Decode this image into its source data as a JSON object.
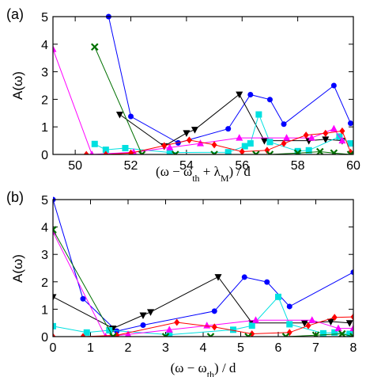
{
  "chart_data": [
    {
      "type": "line",
      "panel_label": "(a)",
      "ylabel": "A(ω)",
      "xlabel_parts": [
        "(ω − ω",
        "th",
        " + λ",
        "M",
        ") / d"
      ],
      "xlim": [
        49.2,
        60.0
      ],
      "ylim": [
        0,
        5
      ],
      "xticks": [
        "50",
        "52",
        "54",
        "56",
        "58",
        "60"
      ],
      "xtick_values": [
        50,
        52,
        54,
        56,
        58,
        60
      ],
      "yticks": [
        "0",
        "1",
        "2",
        "3",
        "4",
        "5"
      ],
      "ytick_values": [
        0,
        1,
        2,
        3,
        4,
        5
      ],
      "series": [
        {
          "color": "#0000ff",
          "marker": "circle",
          "points": [
            [
              51.2,
              5.0
            ],
            [
              52.0,
              1.38
            ],
            [
              53.7,
              0.42
            ],
            [
              55.5,
              0.93
            ],
            [
              56.3,
              2.17
            ],
            [
              57.0,
              1.99
            ],
            [
              57.5,
              1.1
            ],
            [
              59.3,
              2.5
            ],
            [
              59.9,
              1.13
            ]
          ]
        },
        {
          "color": "#000000",
          "marker": "tri-down",
          "points": [
            [
              51.6,
              1.45
            ],
            [
              53.2,
              0.3
            ],
            [
              54.0,
              0.78
            ],
            [
              54.3,
              0.9
            ],
            [
              55.9,
              2.18
            ],
            [
              56.8,
              0.5
            ],
            [
              58.4,
              0.5
            ],
            [
              59.0,
              0.55
            ],
            [
              59.6,
              0.5
            ]
          ]
        },
        {
          "color": "#00e0e0",
          "marker": "square",
          "points": [
            [
              50.7,
              0.38
            ],
            [
              51.1,
              0.17
            ],
            [
              51.8,
              0.23
            ],
            [
              53.4,
              0.07
            ],
            [
              55.5,
              0.08
            ],
            [
              56.1,
              0.3
            ],
            [
              56.3,
              0.4
            ],
            [
              56.6,
              1.45
            ],
            [
              57.0,
              0.45
            ],
            [
              58.0,
              0.12
            ],
            [
              58.4,
              0.15
            ],
            [
              59.5,
              0.65
            ],
            [
              59.9,
              0.4
            ]
          ]
        },
        {
          "color": "#ff00ff",
          "marker": "tri-up",
          "points": [
            [
              49.2,
              3.82
            ],
            [
              50.6,
              0.0
            ],
            [
              52.1,
              0.08
            ],
            [
              53.4,
              0.25
            ],
            [
              54.5,
              0.4
            ],
            [
              55.9,
              0.6
            ],
            [
              57.6,
              0.6
            ],
            [
              58.5,
              0.6
            ],
            [
              59.3,
              0.93
            ],
            [
              59.6,
              0.5
            ]
          ]
        },
        {
          "color": "#ff0000",
          "marker": "diamond",
          "points": [
            [
              50.4,
              0.0
            ],
            [
              51.1,
              0.0
            ],
            [
              52.0,
              0.05
            ],
            [
              53.2,
              0.32
            ],
            [
              54.1,
              0.52
            ],
            [
              55.0,
              0.35
            ],
            [
              56.0,
              0.1
            ],
            [
              56.9,
              0.15
            ],
            [
              57.5,
              0.4
            ],
            [
              58.3,
              0.7
            ],
            [
              59.0,
              0.77
            ],
            [
              59.6,
              0.85
            ],
            [
              59.9,
              0.08
            ]
          ]
        },
        {
          "color": "#007000",
          "marker": "cross",
          "points": [
            [
              50.7,
              3.9
            ],
            [
              52.4,
              0.0
            ],
            [
              53.6,
              0.0
            ],
            [
              55.0,
              0.0
            ],
            [
              56.5,
              0.0
            ],
            [
              57.0,
              0.0
            ],
            [
              58.0,
              0.05
            ],
            [
              58.8,
              0.1
            ],
            [
              59.3,
              0.05
            ],
            [
              59.9,
              0.0
            ]
          ]
        }
      ]
    },
    {
      "type": "line",
      "panel_label": "(b)",
      "ylabel": "A(ω)",
      "xlabel_parts": [
        "(ω − ω",
        "th",
        ") / d"
      ],
      "xlim": [
        0,
        8
      ],
      "ylim": [
        0,
        5
      ],
      "xticks": [
        "0",
        "1",
        "2",
        "3",
        "4",
        "5",
        "6",
        "7",
        "8"
      ],
      "xtick_values": [
        0,
        1,
        2,
        3,
        4,
        5,
        6,
        7,
        8
      ],
      "yticks": [
        "0",
        "1",
        "2",
        "3",
        "4",
        "5"
      ],
      "ytick_values": [
        0,
        1,
        2,
        3,
        4,
        5
      ],
      "series": [
        {
          "color": "#0000ff",
          "marker": "circle",
          "points": [
            [
              0.0,
              5.0
            ],
            [
              0.8,
              1.38
            ],
            [
              1.7,
              0.2
            ],
            [
              2.4,
              0.42
            ],
            [
              4.3,
              0.93
            ],
            [
              5.1,
              2.17
            ],
            [
              5.7,
              1.99
            ],
            [
              6.3,
              1.1
            ],
            [
              8.0,
              2.35
            ]
          ]
        },
        {
          "color": "#000000",
          "marker": "tri-down",
          "points": [
            [
              0.0,
              1.45
            ],
            [
              1.6,
              0.3
            ],
            [
              2.4,
              0.78
            ],
            [
              2.6,
              0.9
            ],
            [
              4.4,
              2.18
            ],
            [
              5.3,
              0.5
            ],
            [
              6.7,
              0.5
            ],
            [
              7.4,
              0.55
            ],
            [
              7.9,
              0.5
            ]
          ]
        },
        {
          "color": "#00e0e0",
          "marker": "square",
          "points": [
            [
              0.0,
              0.38
            ],
            [
              0.9,
              0.15
            ],
            [
              1.5,
              0.23
            ],
            [
              3.1,
              0.07
            ],
            [
              4.8,
              0.25
            ],
            [
              5.3,
              0.4
            ],
            [
              6.0,
              1.45
            ],
            [
              6.3,
              0.45
            ],
            [
              7.2,
              0.12
            ],
            [
              7.5,
              0.15
            ],
            [
              7.9,
              0.1
            ]
          ]
        },
        {
          "color": "#ff00ff",
          "marker": "tri-up",
          "points": [
            [
              0.0,
              3.82
            ],
            [
              1.4,
              0.0
            ],
            [
              2.0,
              0.08
            ],
            [
              3.1,
              0.25
            ],
            [
              4.1,
              0.4
            ],
            [
              5.4,
              0.6
            ],
            [
              6.9,
              0.6
            ],
            [
              7.6,
              0.3
            ],
            [
              8.0,
              0.3
            ]
          ]
        },
        {
          "color": "#ff0000",
          "marker": "diamond",
          "points": [
            [
              0.0,
              0.0
            ],
            [
              0.8,
              0.0
            ],
            [
              1.7,
              0.05
            ],
            [
              3.3,
              0.52
            ],
            [
              4.3,
              0.35
            ],
            [
              5.3,
              0.1
            ],
            [
              6.3,
              0.15
            ],
            [
              6.8,
              0.4
            ],
            [
              7.5,
              0.7
            ],
            [
              8.0,
              0.72
            ]
          ]
        },
        {
          "color": "#007000",
          "marker": "cross",
          "points": [
            [
              0.0,
              3.9
            ],
            [
              1.6,
              0.0
            ],
            [
              3.0,
              0.0
            ],
            [
              4.2,
              0.0
            ],
            [
              5.2,
              0.0
            ],
            [
              6.2,
              0.0
            ],
            [
              7.0,
              0.05
            ],
            [
              7.7,
              0.1
            ],
            [
              8.0,
              0.0
            ]
          ]
        }
      ]
    }
  ]
}
